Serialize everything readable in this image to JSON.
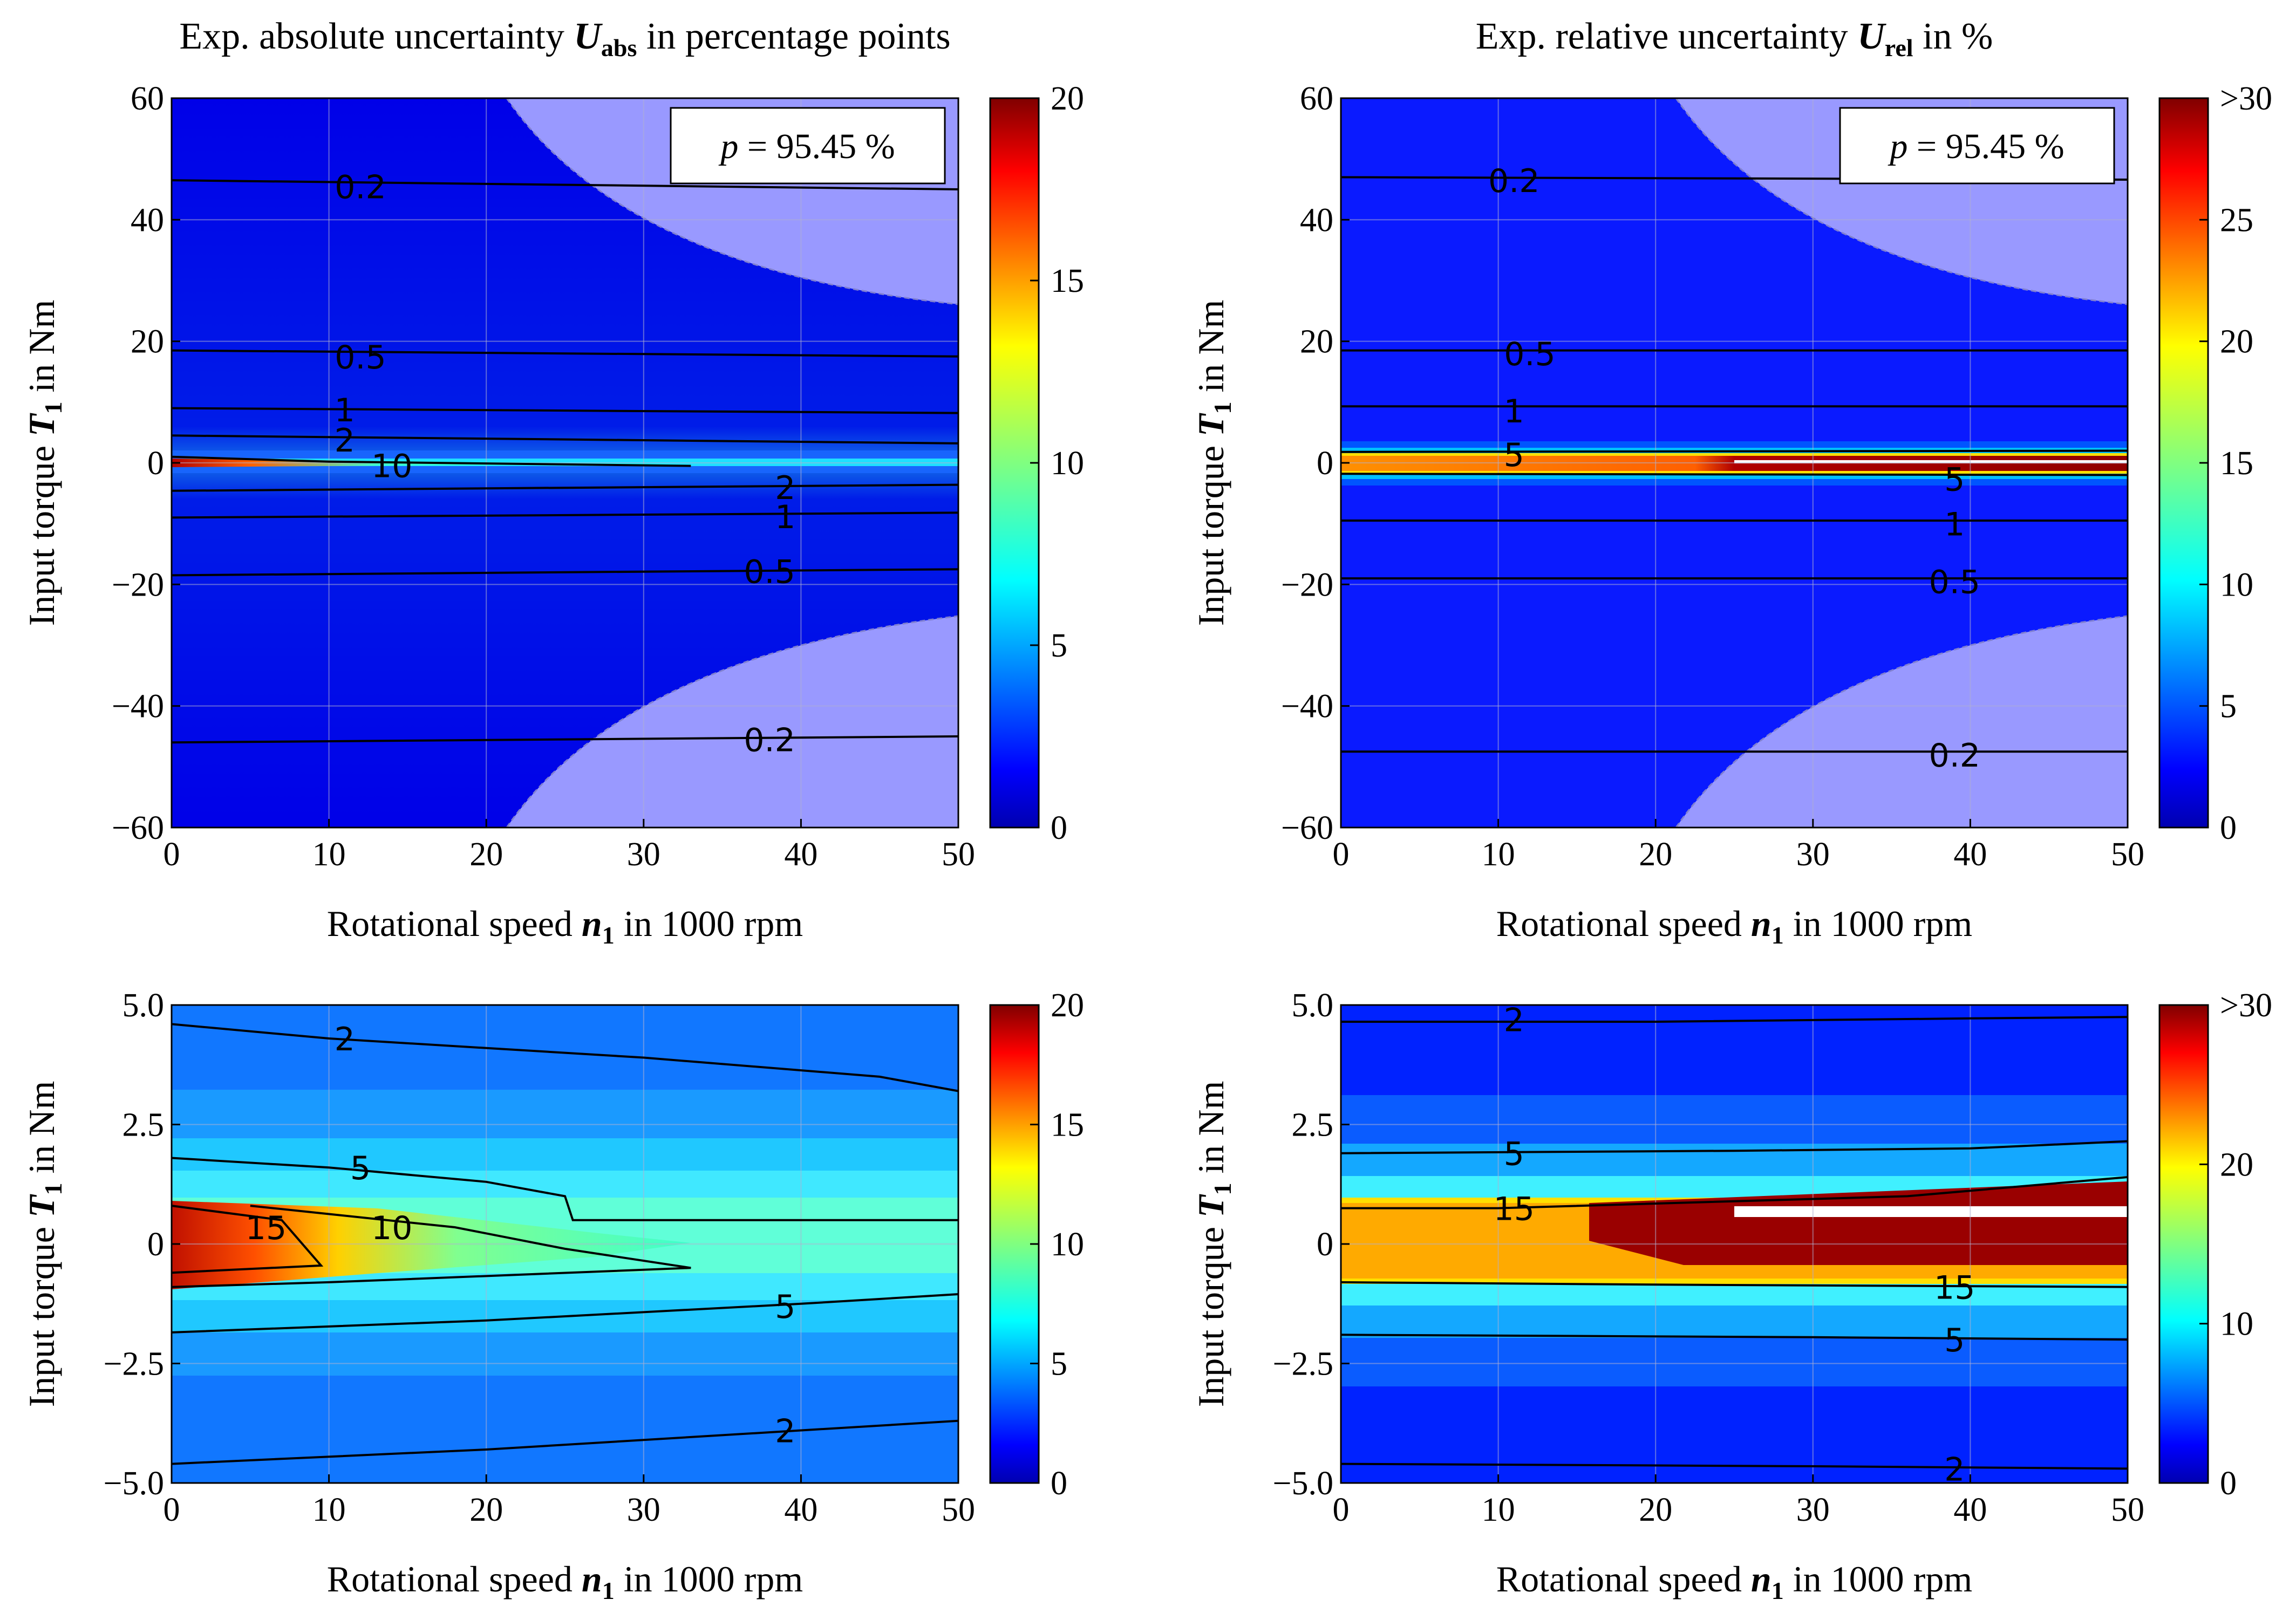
{
  "figure": {
    "titles": {
      "abs": "Exp. absolute uncertainty U_abs in percentage points",
      "rel": "Exp. relative uncertainty U_rel in %"
    },
    "title_parts": {
      "abs_pre": "Exp. absolute uncertainty ",
      "abs_sym": "U",
      "abs_sub": "abs",
      "abs_post": " in percentage points",
      "rel_pre": "Exp. relative uncertainty ",
      "rel_sym": "U",
      "rel_sub": "rel",
      "rel_post": " in %"
    },
    "xlabel_parts": {
      "pre": "Rotational speed ",
      "sym": "n",
      "sub": "1",
      "post": " in 1000 rpm"
    },
    "ylabel_parts": {
      "pre": "Input torque ",
      "sym": "T",
      "sub": "1",
      "post": " in Nm"
    },
    "annotation": "p = 95.45 %",
    "annotation_parts": {
      "sym": "p",
      "rest": " = 95.45 %"
    }
  },
  "chart_data": [
    {
      "id": "abs_full",
      "type": "heatmap",
      "title": "Exp. absolute uncertainty U_abs in percentage points",
      "xlabel": "Rotational speed n1 in 1000 rpm",
      "ylabel": "Input torque T1 in Nm",
      "xlim": [
        0,
        50
      ],
      "ylim": [
        -60,
        60
      ],
      "xticks": [
        0,
        10,
        20,
        30,
        40,
        50
      ],
      "yticks": [
        -60,
        -40,
        -20,
        0,
        20,
        40,
        60
      ],
      "ytick_labels": [
        "−60",
        "−40",
        "−20",
        "0",
        "20",
        "40",
        "60"
      ],
      "colorbar": {
        "min": 0,
        "max": 20,
        "ticks": [
          0,
          5,
          10,
          15,
          20
        ],
        "labels": [
          "0",
          "5",
          "10",
          "15",
          "20"
        ]
      },
      "annotation": "p = 95.45 %",
      "outside_region": "shaded (light purple) beyond maximum power",
      "contours": [
        {
          "level": "0.2",
          "points": [
            [
              0,
              46.5
            ],
            [
              50,
              45
            ]
          ],
          "label_at": [
            12,
            45.5
          ]
        },
        {
          "level": "0.5",
          "points": [
            [
              0,
              18.5
            ],
            [
              50,
              17.5
            ]
          ],
          "label_at": [
            12,
            17.5
          ]
        },
        {
          "level": "1",
          "points": [
            [
              0,
              9
            ],
            [
              50,
              8.2
            ]
          ],
          "label_at": [
            11,
            8.8
          ]
        },
        {
          "level": "2",
          "points": [
            [
              0,
              4.5
            ],
            [
              50,
              3.2
            ]
          ],
          "label_at": [
            11,
            3.8
          ]
        },
        {
          "level": "10",
          "points": [
            [
              0,
              1
            ],
            [
              10,
              0.2
            ],
            [
              33,
              -0.5
            ]
          ],
          "label_at": [
            14,
            -0.4
          ]
        },
        {
          "level": "2",
          "points": [
            [
              0,
              -4.6
            ],
            [
              50,
              -3.6
            ]
          ],
          "label_at": [
            39,
            -4
          ]
        },
        {
          "level": "1",
          "points": [
            [
              0,
              -9
            ],
            [
              50,
              -8.2
            ]
          ],
          "label_at": [
            39,
            -8.8
          ]
        },
        {
          "level": "0.5",
          "points": [
            [
              0,
              -18.5
            ],
            [
              50,
              -17.5
            ]
          ],
          "label_at": [
            38,
            -17.8
          ]
        },
        {
          "level": "0.2",
          "points": [
            [
              0,
              -46
            ],
            [
              50,
              -45
            ]
          ],
          "label_at": [
            38,
            -45.5
          ]
        }
      ]
    },
    {
      "id": "rel_full",
      "type": "heatmap",
      "title": "Exp. relative uncertainty U_rel in %",
      "xlabel": "Rotational speed n1 in 1000 rpm",
      "ylabel": "Input torque T1 in Nm",
      "xlim": [
        0,
        50
      ],
      "ylim": [
        -60,
        60
      ],
      "xticks": [
        0,
        10,
        20,
        30,
        40,
        50
      ],
      "yticks": [
        -60,
        -40,
        -20,
        0,
        20,
        40,
        60
      ],
      "ytick_labels": [
        "−60",
        "−40",
        "−20",
        "0",
        "20",
        "40",
        "60"
      ],
      "colorbar": {
        "min": 0,
        "max": 30,
        "ticks": [
          0,
          5,
          10,
          15,
          20,
          25,
          30
        ],
        "labels": [
          "0",
          "5",
          "10",
          "15",
          "20",
          "25",
          ">30"
        ]
      },
      "annotation": "p = 95.45 %",
      "outside_region": "shaded (light purple) beyond maximum power",
      "contours": [
        {
          "level": "0.2",
          "points": [
            [
              0,
              47
            ],
            [
              50,
              46.6
            ]
          ],
          "label_at": [
            11,
            46.5
          ]
        },
        {
          "level": "0.5",
          "points": [
            [
              0,
              18.5
            ],
            [
              50,
              18.5
            ]
          ],
          "label_at": [
            12,
            18
          ]
        },
        {
          "level": "1",
          "points": [
            [
              0,
              9.3
            ],
            [
              50,
              9.3
            ]
          ],
          "label_at": [
            11,
            8.6
          ]
        },
        {
          "level": "5",
          "points": [
            [
              0,
              1.8
            ],
            [
              50,
              2
            ]
          ],
          "label_at": [
            11,
            1.4
          ]
        },
        {
          "level": "5",
          "points": [
            [
              0,
              -1.8
            ],
            [
              50,
              -2
            ]
          ],
          "label_at": [
            39,
            -2.6
          ]
        },
        {
          "level": "1",
          "points": [
            [
              0,
              -9.5
            ],
            [
              50,
              -9.5
            ]
          ],
          "label_at": [
            39,
            -10
          ]
        },
        {
          "level": "0.5",
          "points": [
            [
              0,
              -19
            ],
            [
              50,
              -19
            ]
          ],
          "label_at": [
            39,
            -19.5
          ]
        },
        {
          "level": "0.2",
          "points": [
            [
              0,
              -47.5
            ],
            [
              50,
              -47.5
            ]
          ],
          "label_at": [
            39,
            -48
          ]
        }
      ]
    },
    {
      "id": "abs_zoom",
      "type": "heatmap",
      "xlabel": "Rotational speed n1 in 1000 rpm",
      "ylabel": "Input torque T1 in Nm",
      "xlim": [
        0,
        50
      ],
      "ylim": [
        -5,
        5
      ],
      "xticks": [
        0,
        10,
        20,
        30,
        40,
        50
      ],
      "yticks": [
        -5,
        -2.5,
        0,
        2.5,
        5
      ],
      "ytick_labels": [
        "−5.0",
        "−2.5",
        "0",
        "2.5",
        "5.0"
      ],
      "colorbar": {
        "min": 0,
        "max": 20,
        "ticks": [
          0,
          5,
          10,
          15,
          20
        ],
        "labels": [
          "0",
          "5",
          "10",
          "15",
          "20"
        ]
      },
      "contours": [
        {
          "level": "2",
          "points": [
            [
              0,
              4.6
            ],
            [
              10,
              4.3
            ],
            [
              30,
              3.9
            ],
            [
              45,
              3.5
            ],
            [
              50,
              3.2
            ]
          ],
          "label_at": [
            11,
            4.3
          ]
        },
        {
          "level": "5",
          "points": [
            [
              0,
              1.8
            ],
            [
              10,
              1.6
            ],
            [
              20,
              1.3
            ],
            [
              25,
              1.0
            ],
            [
              25.5,
              0.5
            ],
            [
              50,
              0.5
            ]
          ],
          "label_at": [
            12,
            1.6
          ]
        },
        {
          "level": "10",
          "points": [
            [
              5,
              0.8
            ],
            [
              18,
              0.35
            ],
            [
              25,
              -0.1
            ],
            [
              33,
              -0.5
            ],
            [
              10,
              -0.8
            ],
            [
              0,
              -0.9
            ]
          ],
          "label_at": [
            14,
            0.35
          ]
        },
        {
          "level": "15",
          "points": [
            [
              0,
              0.8
            ],
            [
              7,
              0.5
            ],
            [
              9.5,
              -0.45
            ],
            [
              0,
              -0.6
            ]
          ],
          "label_at": [
            6,
            0.35
          ]
        },
        {
          "level": "5",
          "points": [
            [
              0,
              -1.85
            ],
            [
              20,
              -1.6
            ],
            [
              40,
              -1.25
            ],
            [
              50,
              -1.05
            ]
          ],
          "label_at": [
            39,
            -1.3
          ]
        },
        {
          "level": "2",
          "points": [
            [
              0,
              -4.6
            ],
            [
              20,
              -4.3
            ],
            [
              40,
              -3.9
            ],
            [
              50,
              -3.7
            ]
          ],
          "label_at": [
            39,
            -3.9
          ]
        }
      ]
    },
    {
      "id": "rel_zoom",
      "type": "heatmap",
      "xlabel": "Rotational speed n1 in 1000 rpm",
      "ylabel": "Input torque T1 in Nm",
      "xlim": [
        0,
        50
      ],
      "ylim": [
        -5,
        5
      ],
      "xticks": [
        0,
        10,
        20,
        30,
        40,
        50
      ],
      "yticks": [
        -5,
        -2.5,
        0,
        2.5,
        5
      ],
      "ytick_labels": [
        "−5.0",
        "−2.5",
        "0",
        "2.5",
        "5.0"
      ],
      "colorbar": {
        "min": 0,
        "max": 30,
        "ticks": [
          0,
          10,
          20,
          30
        ],
        "labels": [
          "0",
          "10",
          "20",
          ">30"
        ]
      },
      "contours": [
        {
          "level": "2",
          "points": [
            [
              0,
              4.65
            ],
            [
              20,
              4.65
            ],
            [
              40,
              4.72
            ],
            [
              50,
              4.75
            ]
          ],
          "label_at": [
            11,
            4.7
          ]
        },
        {
          "level": "5",
          "points": [
            [
              0,
              1.9
            ],
            [
              25,
              1.95
            ],
            [
              40,
              2.0
            ],
            [
              50,
              2.15
            ]
          ],
          "label_at": [
            11,
            1.9
          ]
        },
        {
          "level": "15",
          "points": [
            [
              0,
              0.75
            ],
            [
              10,
              0.75
            ],
            [
              36,
              1.0
            ],
            [
              50,
              1.4
            ]
          ],
          "label_at": [
            11,
            0.75
          ]
        },
        {
          "level": "15",
          "points": [
            [
              0,
              -0.8
            ],
            [
              20,
              -0.85
            ],
            [
              50,
              -0.9
            ]
          ],
          "label_at": [
            39,
            -0.9
          ]
        },
        {
          "level": "5",
          "points": [
            [
              0,
              -1.9
            ],
            [
              30,
              -1.95
            ],
            [
              50,
              -2.0
            ]
          ],
          "label_at": [
            39,
            -2.0
          ]
        },
        {
          "level": "2",
          "points": [
            [
              0,
              -4.6
            ],
            [
              30,
              -4.65
            ],
            [
              50,
              -4.7
            ]
          ],
          "label_at": [
            39,
            -4.7
          ]
        }
      ]
    }
  ]
}
